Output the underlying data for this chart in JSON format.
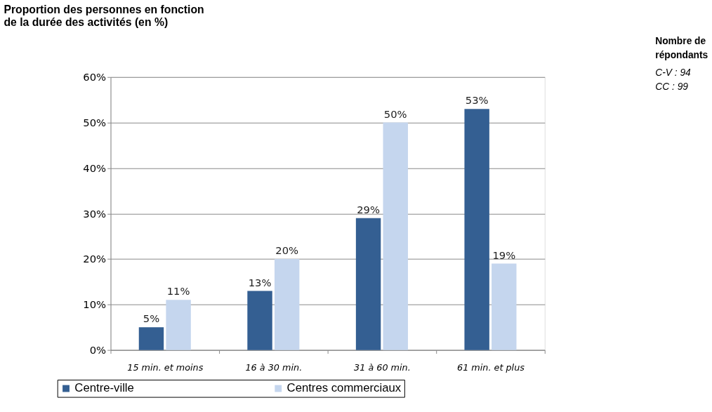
{
  "chart_data": {
    "type": "bar",
    "title": [
      "Proportion des personnes en fonction",
      "de la durée des activités (en %)"
    ],
    "categories": [
      "15 min. et moins",
      "16 à 30 min.",
      "31 à 60 min.",
      "61 min. et plus"
    ],
    "series": [
      {
        "name": "Centre-ville",
        "color": "#345f92",
        "values": [
          5,
          13,
          29,
          53
        ]
      },
      {
        "name": "Centres commerciaux",
        "color": "#c5d6ee",
        "values": [
          11,
          20,
          50,
          19
        ]
      }
    ],
    "ylim": [
      0,
      60
    ],
    "yticks": [
      {
        "value": 0,
        "label": "0%"
      },
      {
        "value": 10,
        "label": "10%"
      },
      {
        "value": 20,
        "label": "20%"
      },
      {
        "value": 30,
        "label": "30%"
      },
      {
        "value": 40,
        "label": "40%"
      },
      {
        "value": 50,
        "label": "50%"
      },
      {
        "value": 60,
        "label": "60%"
      }
    ],
    "value_labels": [
      [
        "5%",
        "13%",
        "29%",
        "53%"
      ],
      [
        "11%",
        "20%",
        "50%",
        "19%"
      ]
    ],
    "annotations": [
      "Nombre de",
      "répondants",
      "C-V : 94",
      "CC : 99"
    ],
    "grid": "y",
    "legend": "bottom left"
  }
}
